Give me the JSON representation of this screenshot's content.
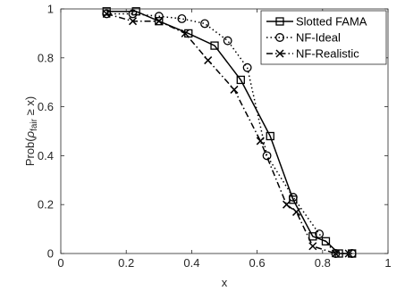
{
  "chart_data": {
    "type": "line",
    "xlabel": "x",
    "ylabel_prefix": "Prob(",
    "ylabel_symbol": "ρ",
    "ylabel_sub": "fair",
    "ylabel_suffix": " ≥ x)",
    "xlim": [
      0,
      1
    ],
    "ylim": [
      0,
      1
    ],
    "xticks": [
      0,
      0.2,
      0.4,
      0.6,
      0.8,
      1
    ],
    "yticks": [
      0,
      0.2,
      0.4,
      0.6,
      0.8,
      1
    ],
    "xtick_labels": [
      "0",
      "0.2",
      "0.4",
      "0.6",
      "0.8",
      "1"
    ],
    "ytick_labels": [
      "0",
      "0.2",
      "0.4",
      "0.6",
      "0.8",
      "1"
    ],
    "grid": false,
    "legend_position": "top-right",
    "series": [
      {
        "name": "Slotted FAMA",
        "marker": "square",
        "dash": "solid",
        "x": [
          0.14,
          0.23,
          0.3,
          0.39,
          0.47,
          0.55,
          0.64,
          0.71,
          0.77,
          0.81,
          0.85,
          0.89
        ],
        "y": [
          0.99,
          0.99,
          0.95,
          0.9,
          0.85,
          0.71,
          0.48,
          0.22,
          0.07,
          0.05,
          0.0,
          0.0
        ]
      },
      {
        "name": "NF-Ideal",
        "marker": "circle",
        "dash": "dotted",
        "x": [
          0.14,
          0.22,
          0.3,
          0.37,
          0.44,
          0.51,
          0.57,
          0.63,
          0.71,
          0.79,
          0.84,
          0.89
        ],
        "y": [
          0.98,
          0.98,
          0.97,
          0.96,
          0.94,
          0.87,
          0.76,
          0.4,
          0.23,
          0.08,
          0.0,
          0.0
        ]
      },
      {
        "name": "NF-Realistic",
        "marker": "x",
        "dash": "dashdot",
        "x": [
          0.14,
          0.22,
          0.3,
          0.38,
          0.45,
          0.53,
          0.61,
          0.69,
          0.72,
          0.77,
          0.84,
          0.88
        ],
        "y": [
          0.98,
          0.95,
          0.95,
          0.9,
          0.79,
          0.67,
          0.46,
          0.2,
          0.17,
          0.03,
          0.0,
          0.0
        ]
      }
    ]
  }
}
